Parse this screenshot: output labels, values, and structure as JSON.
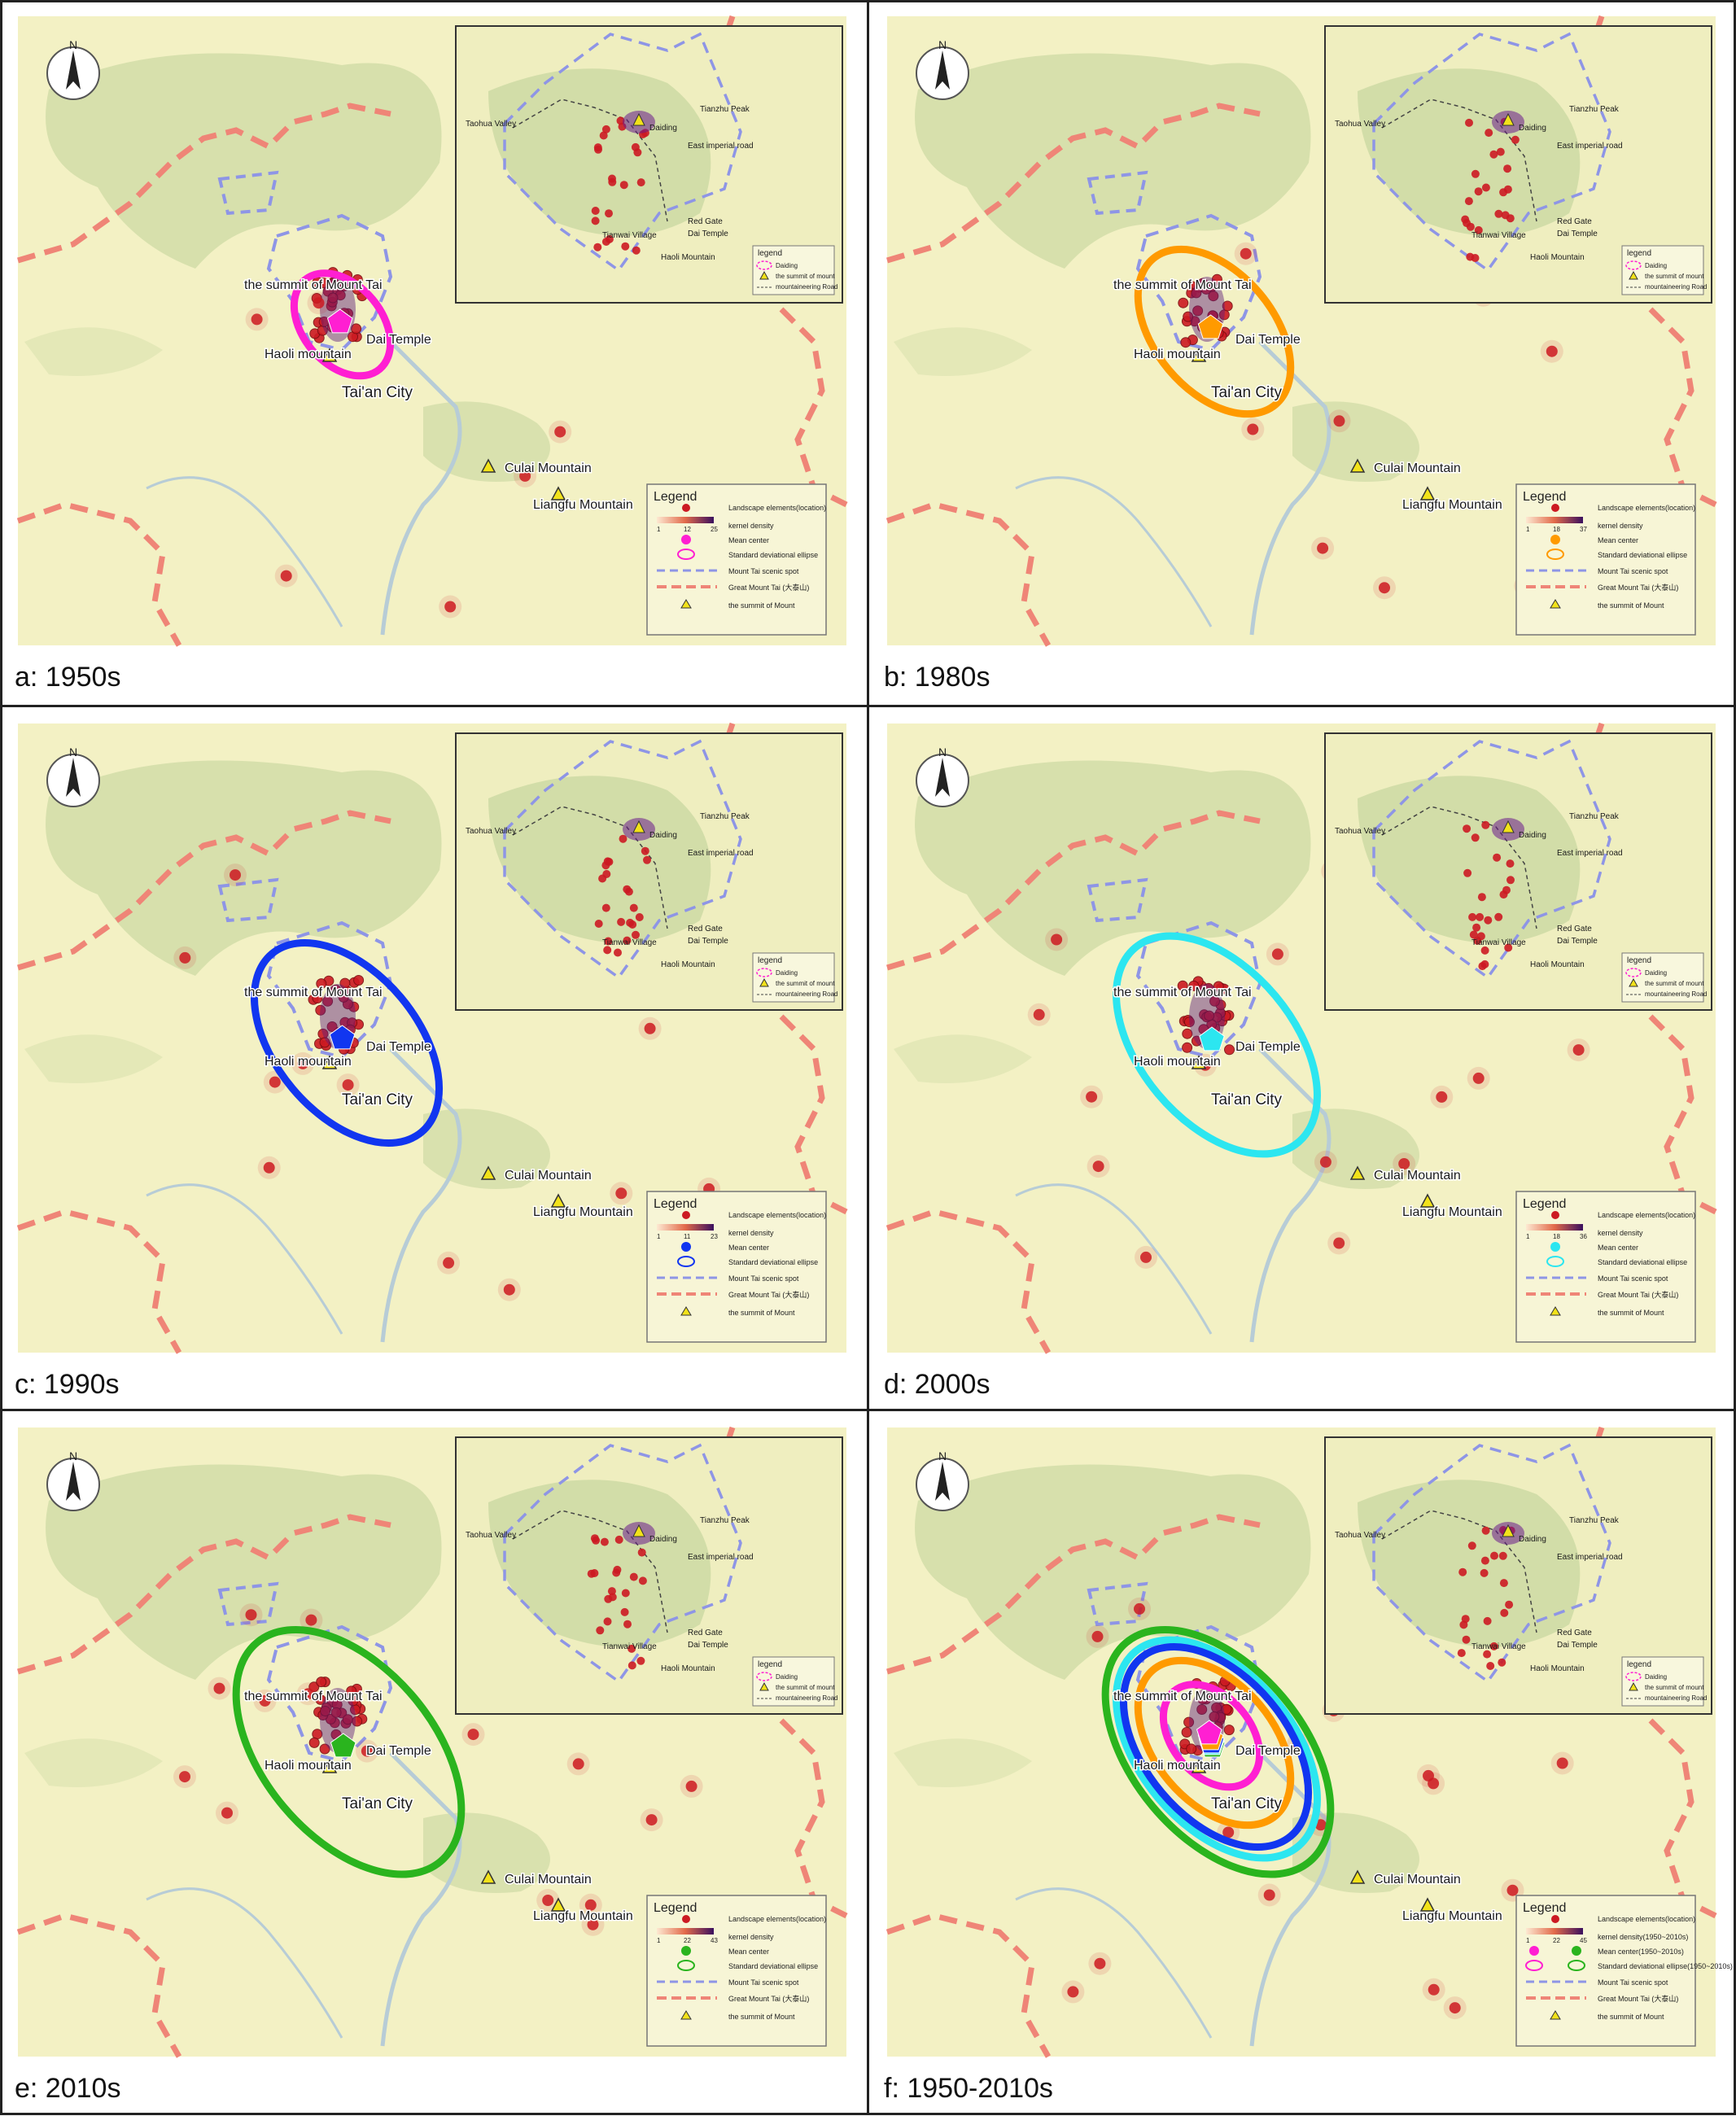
{
  "panels": [
    {
      "caption": "a: 1950s",
      "ellipse_color": "#ff1fd2",
      "ellipse_scale": 0.55,
      "kernel_ticks": [
        "1",
        "12",
        "25"
      ],
      "show_center": true,
      "extra_points": 6
    },
    {
      "caption": "b: 1980s",
      "ellipse_color": "#ff9a00",
      "ellipse_scale": 0.9,
      "kernel_ticks": [
        "1",
        "18",
        "37"
      ],
      "show_center": true,
      "extra_points": 10
    },
    {
      "caption": "c: 1990s",
      "ellipse_color": "#1136f0",
      "ellipse_scale": 1.1,
      "kernel_ticks": [
        "1",
        "11",
        "23"
      ],
      "show_center": true,
      "extra_points": 14
    },
    {
      "caption": "d: 2000s",
      "ellipse_color": "#2ce6f0",
      "ellipse_scale": 1.2,
      "kernel_ticks": [
        "1",
        "18",
        "36"
      ],
      "show_center": true,
      "extra_points": 16
    },
    {
      "caption": "e: 2010s",
      "ellipse_color": "#2ab41e",
      "ellipse_scale": 1.35,
      "kernel_ticks": [
        "1",
        "22",
        "43"
      ],
      "show_center": true,
      "extra_points": 20
    },
    {
      "caption": "f: 1950-2010s",
      "ellipse_color": "multi",
      "ellipse_scale": 1.35,
      "kernel_ticks": [
        "1",
        "22",
        "45"
      ],
      "show_center": true,
      "extra_points": 20
    }
  ],
  "map_labels": {
    "summit": "the summit of Mount Tai",
    "dai_temple": "Dai Temple",
    "haoli": "Haoli mountain",
    "taian": "Tai'an City",
    "culai": "Culai Mountain",
    "liangfu": "Liangfu Mountain"
  },
  "inset_labels": {
    "taohua": "Taohua Valley",
    "tianzhu": "Tianzhu Peak",
    "daiding": "Daiding",
    "east_road": "East imperial road",
    "red_gate": "Red Gate",
    "dai_temple": "Dai Temple",
    "tianwai": "Tianwai Village",
    "haoli": "Haoli Mountain"
  },
  "inset_legend": {
    "title": "legend",
    "items": [
      "Daiding",
      "the summit of mount",
      "mountaineering Road"
    ]
  },
  "legend": {
    "title": "Legend",
    "items": [
      "Landscape elements(location)",
      "kernel density",
      "Mean center",
      "Standard deviational ellipse",
      "Mount Tai scenic spot",
      "Great Mount Tai (大泰山)",
      "the summit of Mount"
    ],
    "combined_items": {
      "kernel": "kernel density(1950~2010s)",
      "mean": "Mean center(1950~2010s)",
      "ellipse": "Standard deviational ellipse(1950~2010s)"
    }
  },
  "north_label": "N",
  "colors": {
    "map_bg": "#f3f1c4",
    "terrain": "#c8d7a0",
    "boundary_great": "#ef8577",
    "boundary_scenic": "#8e95e6",
    "point": "#cc1a22",
    "water": "#b7ccd6"
  }
}
